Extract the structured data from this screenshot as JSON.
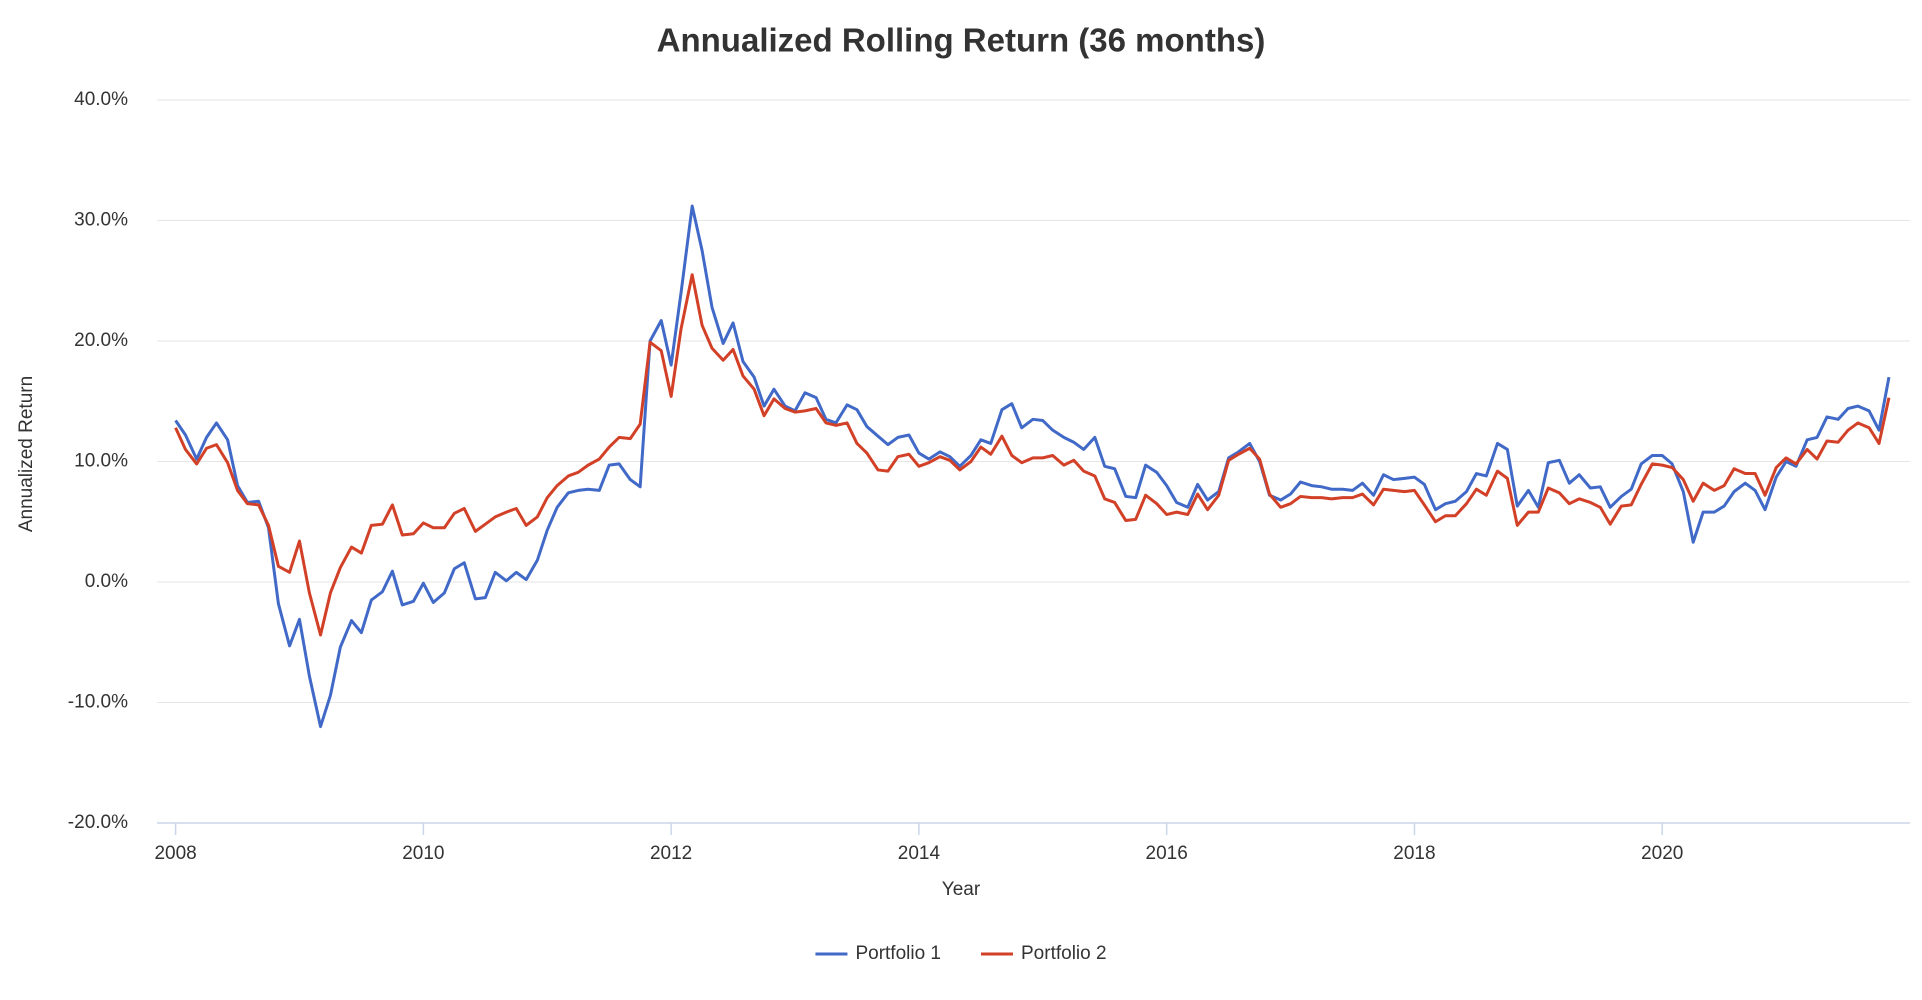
{
  "chart_data": {
    "type": "line",
    "title": "Annualized Rolling Return (36 months)",
    "xlabel": "Year",
    "ylabel": "Annualized Return",
    "xlim": [
      2007.85,
      2022.0
    ],
    "xticks": [
      2008,
      2010,
      2012,
      2014,
      2016,
      2018,
      2020
    ],
    "ylim": [
      -20,
      40
    ],
    "yticks": [
      {
        "value": -20,
        "label": "-20.0%"
      },
      {
        "value": -10,
        "label": "-10.0%"
      },
      {
        "value": 0,
        "label": "0.0%"
      },
      {
        "value": 10,
        "label": "10.0%"
      },
      {
        "value": 20,
        "label": "20.0%"
      },
      {
        "value": 30,
        "label": "30.0%"
      },
      {
        "value": 40,
        "label": "40.0%"
      }
    ],
    "grid": true,
    "legend": "bottom",
    "x": [
      2008,
      2008.08,
      2008.17,
      2008.25,
      2008.33,
      2008.42,
      2008.5,
      2008.58,
      2008.67,
      2008.75,
      2008.83,
      2008.92,
      2009,
      2009.08,
      2009.17,
      2009.25,
      2009.33,
      2009.42,
      2009.5,
      2009.58,
      2009.67,
      2009.75,
      2009.83,
      2009.92,
      2010,
      2010.08,
      2010.17,
      2010.25,
      2010.33,
      2010.42,
      2010.5,
      2010.58,
      2010.67,
      2010.75,
      2010.83,
      2010.92,
      2011,
      2011.08,
      2011.17,
      2011.25,
      2011.33,
      2011.42,
      2011.5,
      2011.58,
      2011.67,
      2011.75,
      2011.83,
      2011.92,
      2012,
      2012.08,
      2012.17,
      2012.25,
      2012.33,
      2012.42,
      2012.5,
      2012.58,
      2012.67,
      2012.75,
      2012.83,
      2012.92,
      2013,
      2013.08,
      2013.17,
      2013.25,
      2013.33,
      2013.42,
      2013.5,
      2013.58,
      2013.67,
      2013.75,
      2013.83,
      2013.92,
      2014,
      2014.08,
      2014.17,
      2014.25,
      2014.33,
      2014.42,
      2014.5,
      2014.58,
      2014.67,
      2014.75,
      2014.83,
      2014.92,
      2015,
      2015.08,
      2015.17,
      2015.25,
      2015.33,
      2015.42,
      2015.5,
      2015.58,
      2015.67,
      2015.75,
      2015.83,
      2015.92,
      2016,
      2016.08,
      2016.17,
      2016.25,
      2016.33,
      2016.42,
      2016.5,
      2016.58,
      2016.67,
      2016.75,
      2016.83,
      2016.92,
      2017,
      2017.08,
      2017.17,
      2017.25,
      2017.33,
      2017.42,
      2017.5,
      2017.58,
      2017.67,
      2017.75,
      2017.83,
      2017.92,
      2018,
      2018.08,
      2018.17,
      2018.25,
      2018.33,
      2018.42,
      2018.5,
      2018.58,
      2018.67,
      2018.75,
      2018.83,
      2018.92,
      2019,
      2019.08,
      2019.17,
      2019.25,
      2019.33,
      2019.42,
      2019.5,
      2019.58,
      2019.67,
      2019.75,
      2019.83,
      2019.92,
      2020,
      2020.08,
      2020.17,
      2020.25,
      2020.33,
      2020.42,
      2020.5,
      2020.58,
      2020.67,
      2020.75,
      2020.83,
      2020.92,
      2021,
      2021.08,
      2021.17,
      2021.25,
      2021.33,
      2021.42,
      2021.5,
      2021.58,
      2021.67,
      2021.75,
      2021.83
    ],
    "series": [
      {
        "name": "Portfolio 1",
        "color": "#4169c8",
        "values": [
          13.4,
          12.2,
          10.2,
          12.0,
          13.2,
          11.8,
          8.0,
          6.6,
          6.7,
          4.5,
          -1.8,
          -5.3,
          -3.1,
          -7.8,
          -12.0,
          -9.4,
          -5.4,
          -3.2,
          -4.2,
          -1.5,
          -0.8,
          0.9,
          -1.9,
          -1.6,
          -0.1,
          -1.7,
          -0.9,
          1.1,
          1.6,
          -1.4,
          -1.3,
          0.8,
          0.1,
          0.8,
          0.2,
          1.8,
          4.3,
          6.2,
          7.4,
          7.6,
          7.7,
          7.6,
          9.7,
          9.8,
          8.5,
          7.9,
          20.0,
          21.7,
          18.0,
          24.0,
          31.2,
          27.5,
          22.8,
          19.8,
          21.5,
          18.3,
          17.0,
          14.6,
          16.0,
          14.6,
          14.2,
          15.7,
          15.3,
          13.5,
          13.2,
          14.7,
          14.3,
          12.9,
          12.1,
          11.4,
          12.0,
          12.2,
          10.7,
          10.2,
          10.8,
          10.4,
          9.6,
          10.5,
          11.8,
          11.5,
          14.3,
          14.8,
          12.8,
          13.5,
          13.4,
          12.6,
          12.0,
          11.6,
          11.0,
          12.0,
          9.6,
          9.4,
          7.1,
          7.0,
          9.7,
          9.1,
          8.0,
          6.6,
          6.2,
          8.1,
          6.8,
          7.5,
          10.3,
          10.8,
          11.5,
          10.0,
          7.2,
          6.8,
          7.3,
          8.3,
          8.0,
          7.9,
          7.7,
          7.7,
          7.6,
          8.2,
          7.2,
          8.9,
          8.5,
          8.6,
          8.7,
          8.1,
          6.0,
          6.5,
          6.7,
          7.5,
          9.0,
          8.8,
          11.5,
          11.0,
          6.3,
          7.6,
          6.2,
          9.9,
          10.1,
          8.2,
          8.9,
          7.8,
          7.9,
          6.2,
          7.1,
          7.7,
          9.8,
          10.5,
          10.5,
          9.8,
          7.5,
          3.3,
          5.8,
          5.8,
          6.3,
          7.5,
          8.2,
          7.6,
          6.0,
          8.7,
          10.0,
          9.6,
          11.8,
          12.0,
          13.7,
          13.5,
          14.4,
          14.6,
          14.2,
          12.6,
          17.0
        ]
      },
      {
        "name": "Portfolio 2",
        "color": "#d24127",
        "values": [
          12.8,
          11.0,
          9.8,
          11.1,
          11.4,
          9.9,
          7.6,
          6.5,
          6.4,
          4.7,
          1.3,
          0.8,
          3.4,
          -0.9,
          -4.4,
          -0.9,
          1.2,
          2.9,
          2.4,
          4.7,
          4.8,
          6.4,
          3.9,
          4.0,
          4.9,
          4.5,
          4.5,
          5.7,
          6.1,
          4.2,
          4.8,
          5.4,
          5.8,
          6.1,
          4.7,
          5.4,
          7.0,
          8.0,
          8.8,
          9.1,
          9.7,
          10.2,
          11.2,
          12.0,
          11.9,
          13.1,
          19.9,
          19.2,
          15.4,
          21.0,
          25.5,
          21.3,
          19.4,
          18.4,
          19.3,
          17.1,
          16.0,
          13.8,
          15.2,
          14.4,
          14.1,
          14.2,
          14.4,
          13.2,
          13.0,
          13.2,
          11.5,
          10.7,
          9.3,
          9.2,
          10.4,
          10.6,
          9.6,
          9.9,
          10.4,
          10.1,
          9.3,
          10.0,
          11.2,
          10.6,
          12.1,
          10.5,
          9.9,
          10.3,
          10.3,
          10.5,
          9.7,
          10.1,
          9.2,
          8.8,
          6.9,
          6.6,
          5.1,
          5.2,
          7.2,
          6.5,
          5.6,
          5.8,
          5.6,
          7.3,
          6.0,
          7.2,
          10.1,
          10.6,
          11.1,
          10.2,
          7.3,
          6.2,
          6.5,
          7.1,
          7.0,
          7.0,
          6.9,
          7.0,
          7.0,
          7.3,
          6.4,
          7.7,
          7.6,
          7.5,
          7.6,
          6.4,
          5.0,
          5.5,
          5.5,
          6.5,
          7.7,
          7.2,
          9.2,
          8.6,
          4.7,
          5.8,
          5.8,
          7.8,
          7.4,
          6.5,
          6.9,
          6.6,
          6.2,
          4.8,
          6.3,
          6.4,
          8.1,
          9.8,
          9.7,
          9.5,
          8.5,
          6.7,
          8.2,
          7.6,
          8.0,
          9.4,
          9.0,
          9.0,
          7.2,
          9.5,
          10.3,
          9.8,
          11.0,
          10.2,
          11.7,
          11.6,
          12.6,
          13.2,
          12.8,
          11.5,
          15.3
        ]
      }
    ]
  }
}
